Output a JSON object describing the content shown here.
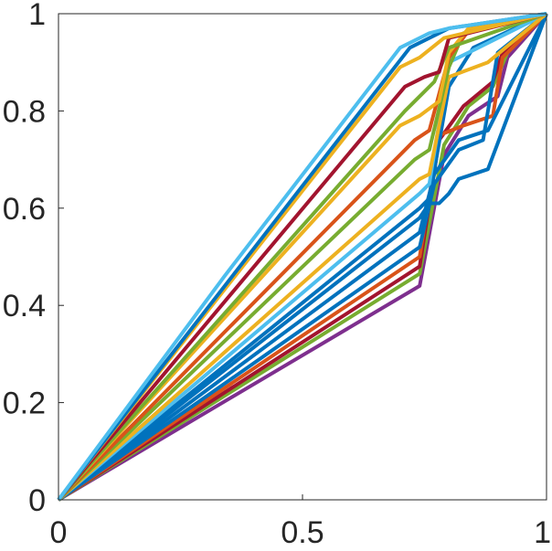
{
  "chart_data": {
    "type": "line",
    "title": "",
    "xlabel": "",
    "ylabel": "",
    "xlim": [
      0,
      1
    ],
    "ylim": [
      0,
      1
    ],
    "grid": false,
    "legend": "none",
    "x_ticks": [
      {
        "value": 0,
        "label": "0"
      },
      {
        "value": 0.5,
        "label": "0.5"
      },
      {
        "value": 1,
        "label": "1"
      }
    ],
    "y_ticks": [
      {
        "value": 0,
        "label": "0"
      },
      {
        "value": 0.2,
        "label": "0.2"
      },
      {
        "value": 0.4,
        "label": "0.4"
      },
      {
        "value": 0.6,
        "label": "0.6"
      },
      {
        "value": 0.8,
        "label": "0.8"
      },
      {
        "value": 1,
        "label": "1"
      }
    ],
    "series": [
      {
        "color": "#7E2F8E",
        "x": [
          0,
          0.74,
          0.79,
          0.84,
          0.9,
          0.92,
          1
        ],
        "y": [
          0,
          0.44,
          0.71,
          0.79,
          0.83,
          0.91,
          1
        ]
      },
      {
        "color": "#77AC30",
        "x": [
          0,
          0.74,
          0.79,
          0.84,
          0.89,
          0.92,
          1
        ],
        "y": [
          0,
          0.465,
          0.73,
          0.81,
          0.85,
          0.92,
          1
        ]
      },
      {
        "color": "#A2142F",
        "x": [
          0,
          0.74,
          0.78,
          0.83,
          0.89,
          0.91,
          1
        ],
        "y": [
          0,
          0.48,
          0.74,
          0.81,
          0.86,
          0.92,
          1
        ]
      },
      {
        "color": "#D95319",
        "x": [
          0,
          0.74,
          0.78,
          0.83,
          0.89,
          0.91,
          1
        ],
        "y": [
          0,
          0.5,
          0.75,
          0.77,
          0.79,
          0.91,
          1
        ]
      },
      {
        "color": "#0072BD",
        "x": [
          0,
          0.74,
          0.77,
          0.82,
          0.87,
          0.9,
          1
        ],
        "y": [
          0,
          0.52,
          0.65,
          0.72,
          0.74,
          0.92,
          1
        ]
      },
      {
        "color": "#0072BD",
        "x": [
          0,
          0.74,
          0.77,
          0.82,
          0.88,
          1
        ],
        "y": [
          0,
          0.55,
          0.67,
          0.74,
          0.76,
          1
        ]
      },
      {
        "color": "#0072BD",
        "x": [
          0,
          0.74,
          0.76,
          0.78,
          0.8,
          0.82,
          0.88,
          1
        ],
        "y": [
          0,
          0.58,
          0.61,
          0.61,
          0.63,
          0.66,
          0.68,
          1
        ]
      },
      {
        "color": "#0072BD",
        "x": [
          0,
          0.74,
          0.76,
          0.8,
          0.85,
          1
        ],
        "y": [
          0,
          0.6,
          0.62,
          0.85,
          0.93,
          1
        ]
      },
      {
        "color": "#4DBEEE",
        "x": [
          0,
          0.74,
          0.76,
          0.8,
          1
        ],
        "y": [
          0,
          0.63,
          0.65,
          0.9,
          1
        ]
      },
      {
        "color": "#EDB120",
        "x": [
          0,
          0.74,
          0.76,
          0.8,
          0.88,
          1
        ],
        "y": [
          0,
          0.66,
          0.67,
          0.87,
          0.9,
          1
        ]
      },
      {
        "color": "#77AC30",
        "x": [
          0,
          0.73,
          0.76,
          0.8,
          0.83,
          1
        ],
        "y": [
          0,
          0.7,
          0.72,
          0.89,
          0.96,
          1
        ]
      },
      {
        "color": "#D95319",
        "x": [
          0,
          0.73,
          0.76,
          0.8,
          0.84,
          1
        ],
        "y": [
          0,
          0.74,
          0.76,
          0.91,
          0.965,
          1
        ]
      },
      {
        "color": "#EDB120",
        "x": [
          0,
          0.7,
          0.74,
          0.78,
          0.8,
          0.84,
          1
        ],
        "y": [
          0,
          0.77,
          0.79,
          0.82,
          0.92,
          0.97,
          1
        ]
      },
      {
        "color": "#77AC30",
        "x": [
          0,
          0.71,
          0.74,
          0.77,
          0.8,
          1
        ],
        "y": [
          0,
          0.8,
          0.83,
          0.86,
          0.93,
          1
        ]
      },
      {
        "color": "#A2142F",
        "x": [
          0,
          0.71,
          0.75,
          0.78,
          0.8,
          1
        ],
        "y": [
          0,
          0.85,
          0.87,
          0.88,
          0.95,
          1
        ]
      },
      {
        "color": "#EDB120",
        "x": [
          0,
          0.7,
          0.74,
          0.79,
          1
        ],
        "y": [
          0,
          0.89,
          0.91,
          0.95,
          1
        ]
      },
      {
        "color": "#0072BD",
        "x": [
          0,
          0.72,
          0.76,
          0.8,
          1
        ],
        "y": [
          0,
          0.93,
          0.95,
          0.97,
          1
        ]
      },
      {
        "color": "#4DBEEE",
        "x": [
          0,
          0.34,
          0.7,
          0.76,
          0.8,
          1
        ],
        "y": [
          0,
          0.46,
          0.93,
          0.96,
          0.97,
          1
        ]
      }
    ]
  }
}
